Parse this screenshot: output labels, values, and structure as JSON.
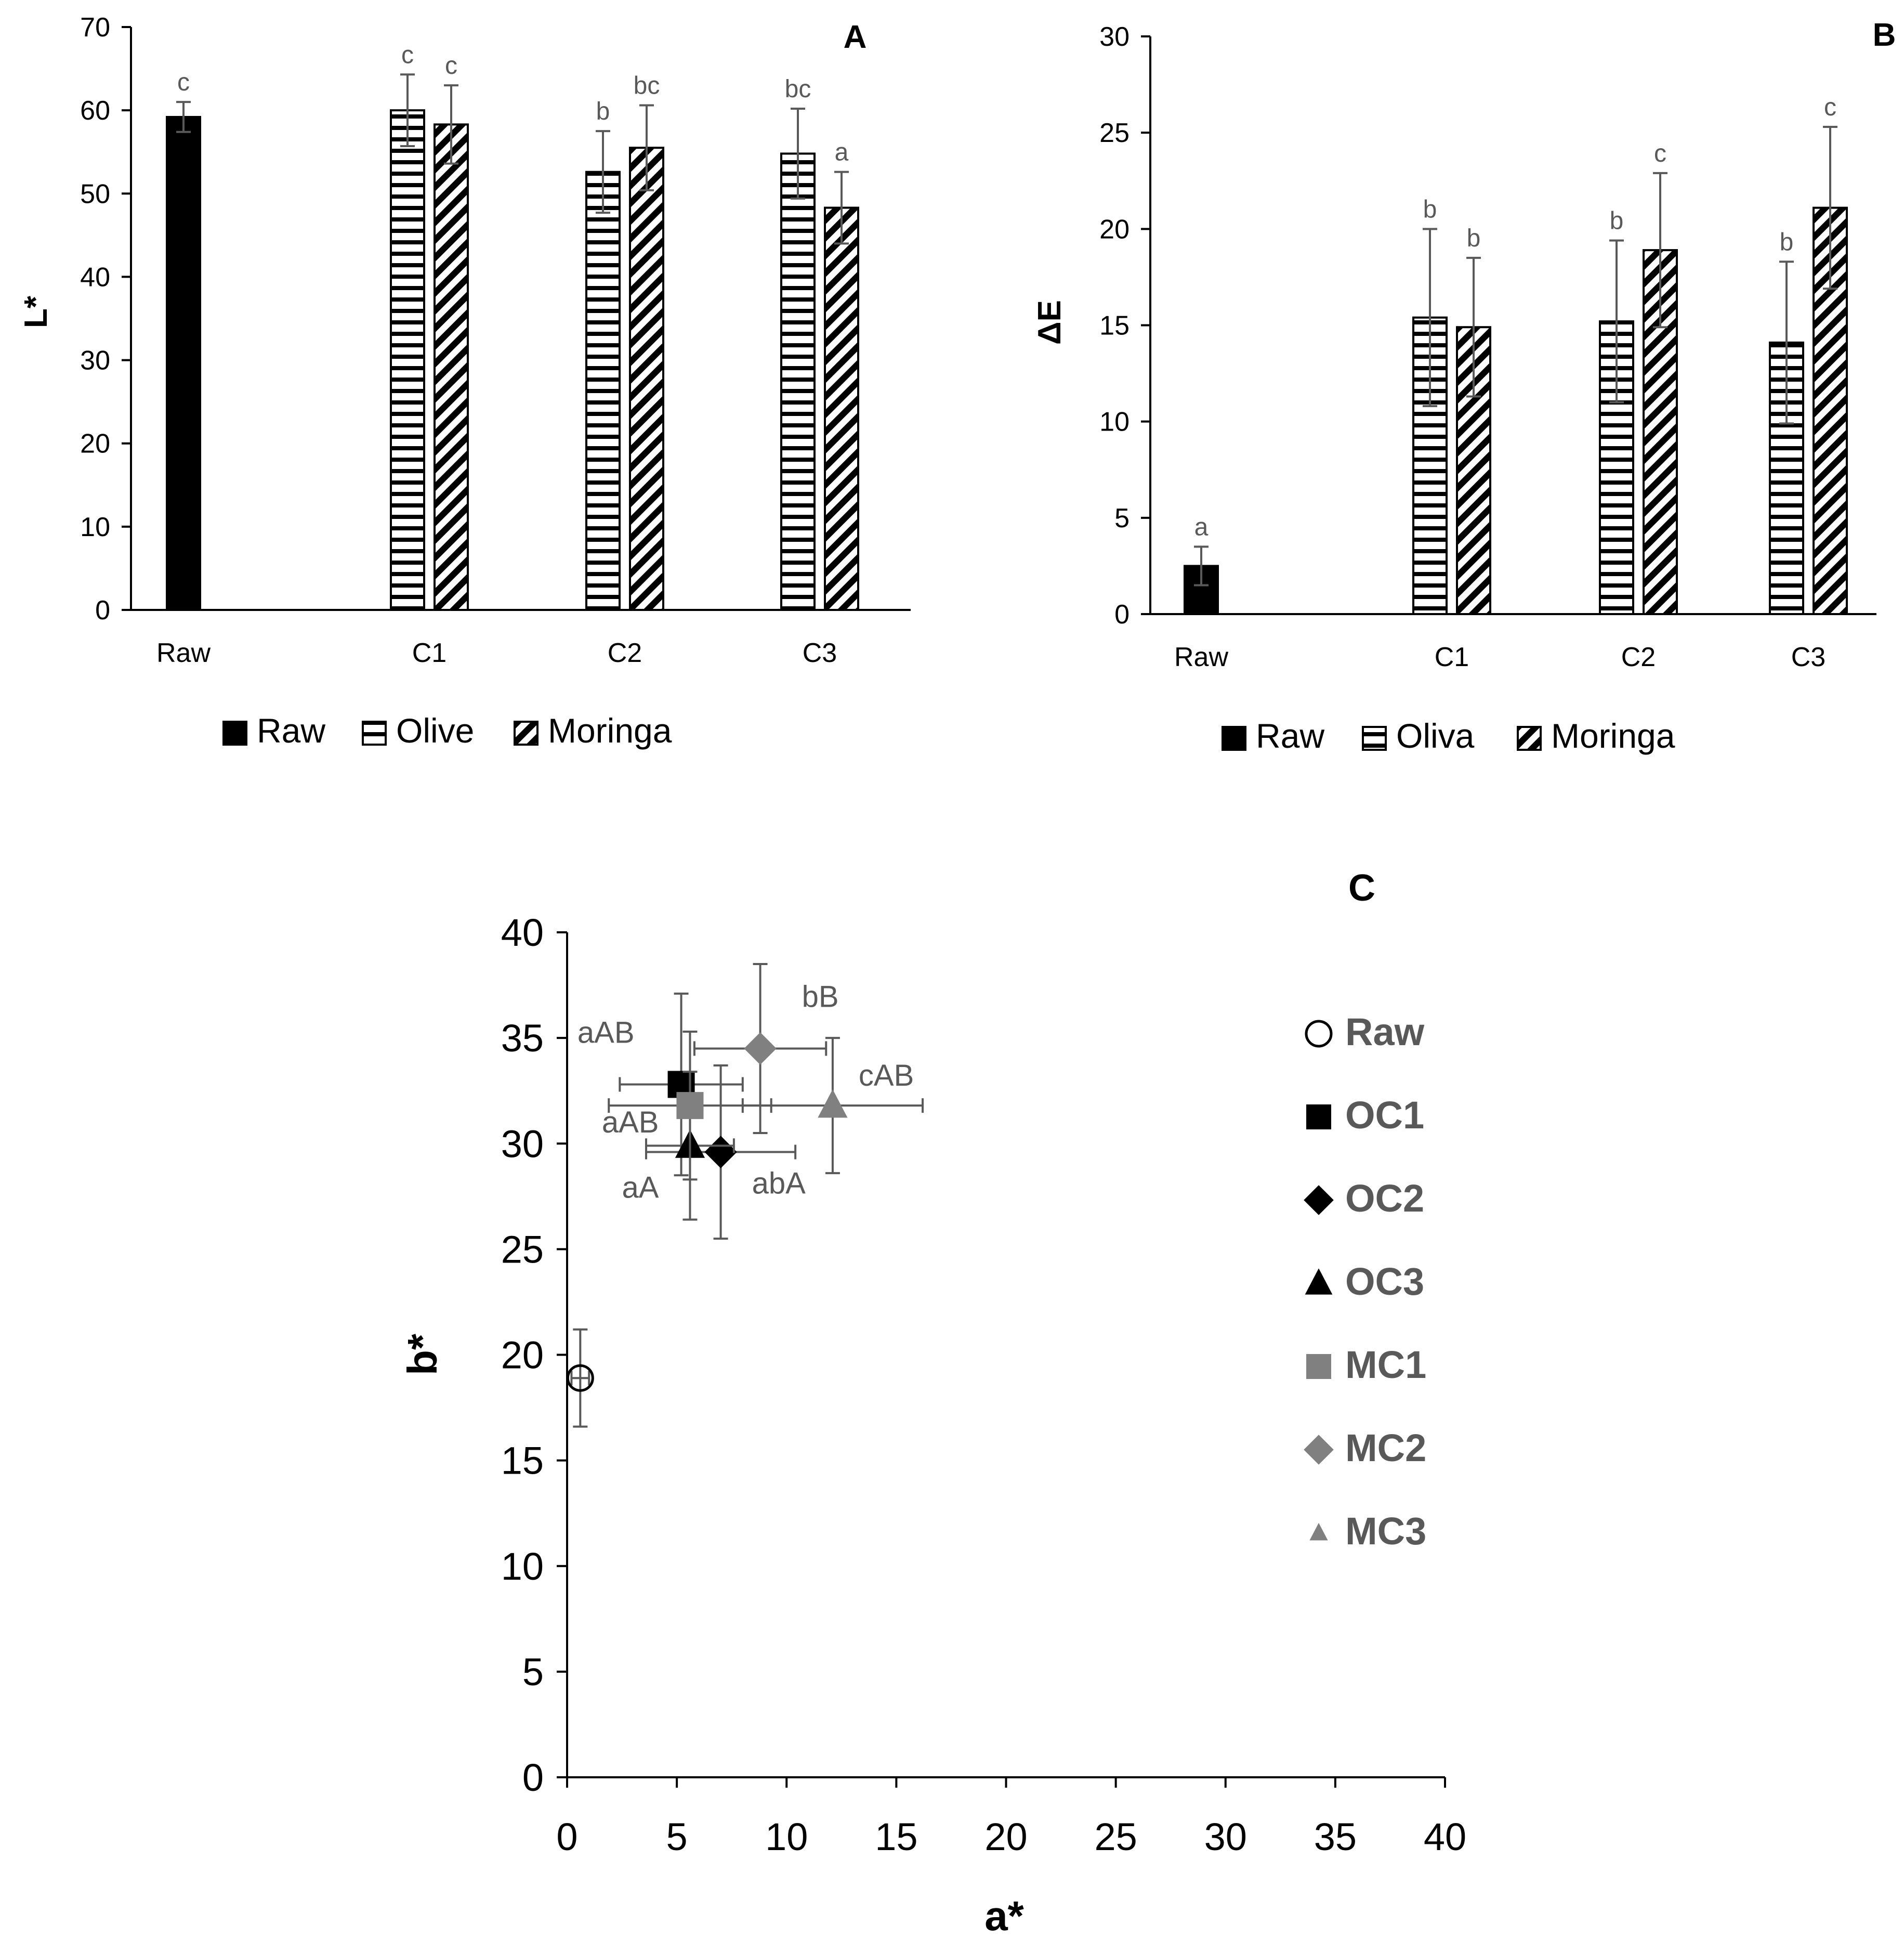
{
  "chart_data": [
    {
      "panel": "A",
      "type": "bar",
      "panel_label": "A",
      "ylabel": "L*",
      "xlabel": "",
      "ylim": [
        0,
        70
      ],
      "yticks": [
        0,
        10,
        20,
        30,
        40,
        50,
        60,
        70
      ],
      "categories": [
        "Raw",
        "C1",
        "C2",
        "C3"
      ],
      "series": [
        {
          "name": "Raw",
          "pattern": "solid",
          "values": [
            59.2,
            null,
            null,
            null
          ],
          "errors": [
            1.8,
            null,
            null,
            null
          ],
          "letters": [
            "c",
            null,
            null,
            null
          ]
        },
        {
          "name": "Olive",
          "pattern": "horizontal",
          "values": [
            null,
            60.0,
            52.6,
            54.8
          ],
          "errors": [
            null,
            4.3,
            4.9,
            5.4
          ],
          "letters": [
            null,
            "c",
            "b",
            "bc"
          ]
        },
        {
          "name": "Moringa",
          "pattern": "diagonal",
          "values": [
            null,
            58.3,
            55.5,
            48.3
          ],
          "errors": [
            null,
            4.7,
            5.1,
            4.3
          ],
          "letters": [
            null,
            "c",
            "bc",
            "a"
          ]
        }
      ],
      "legend": [
        "Raw",
        "Olive",
        "Moringa"
      ],
      "legend_position": "bottom"
    },
    {
      "panel": "B",
      "type": "bar",
      "panel_label": "B",
      "ylabel": "ΔE",
      "xlabel": "",
      "ylim": [
        0,
        30
      ],
      "yticks": [
        0,
        5,
        10,
        15,
        20,
        25,
        30
      ],
      "categories": [
        "Raw",
        "C1",
        "C2",
        "C3"
      ],
      "series": [
        {
          "name": "Raw",
          "pattern": "solid",
          "values": [
            2.5,
            null,
            null,
            null
          ],
          "errors": [
            1.0,
            null,
            null,
            null
          ],
          "letters": [
            "a",
            null,
            null,
            null
          ]
        },
        {
          "name": "Oliva",
          "pattern": "horizontal",
          "values": [
            null,
            15.4,
            15.2,
            14.1
          ],
          "errors": [
            null,
            4.6,
            4.2,
            4.2
          ],
          "letters": [
            null,
            "b",
            "b",
            "b"
          ]
        },
        {
          "name": "Moringa",
          "pattern": "diagonal",
          "values": [
            null,
            14.9,
            18.9,
            21.1
          ],
          "errors": [
            null,
            3.6,
            4.0,
            4.2
          ],
          "letters": [
            null,
            "b",
            "c",
            "c"
          ]
        }
      ],
      "legend": [
        "Raw",
        "Oliva",
        "Moringa"
      ],
      "legend_position": "bottom"
    },
    {
      "panel": "C",
      "type": "scatter",
      "panel_label": "C",
      "xlabel": "a*",
      "ylabel": "b*",
      "xlim": [
        0,
        40
      ],
      "ylim": [
        0,
        40
      ],
      "xticks": [
        0,
        5,
        10,
        15,
        20,
        25,
        30,
        35,
        40
      ],
      "yticks": [
        0,
        5,
        10,
        15,
        20,
        25,
        30,
        35,
        40
      ],
      "legend_position": "right",
      "series": [
        {
          "name": "Raw",
          "marker": "circle-open",
          "color": "#000000",
          "x": 0.6,
          "y": 18.9,
          "xerr": 0.4,
          "yerr": 2.3,
          "label": ""
        },
        {
          "name": "OC1",
          "marker": "square",
          "color": "#000000",
          "x": 5.2,
          "y": 32.8,
          "xerr": 2.8,
          "yerr": 4.3,
          "label": "aAB"
        },
        {
          "name": "OC2",
          "marker": "diamond",
          "color": "#000000",
          "x": 7.0,
          "y": 29.6,
          "xerr": 3.4,
          "yerr": 4.1,
          "label": "abA"
        },
        {
          "name": "OC3",
          "marker": "triangle",
          "color": "#000000",
          "x": 5.6,
          "y": 29.9,
          "xerr": 2.0,
          "yerr": 3.5,
          "label": "aA"
        },
        {
          "name": "MC1",
          "marker": "square",
          "color": "#808080",
          "x": 5.6,
          "y": 31.8,
          "xerr": 3.7,
          "yerr": 3.5,
          "label": "aAB"
        },
        {
          "name": "MC2",
          "marker": "diamond",
          "color": "#808080",
          "x": 8.8,
          "y": 34.5,
          "xerr": 3.0,
          "yerr": 4.0,
          "label": "bB"
        },
        {
          "name": "MC3",
          "marker": "triangle",
          "color": "#808080",
          "x": 12.1,
          "y": 31.8,
          "xerr": 4.1,
          "yerr": 3.2,
          "label": "cAB"
        }
      ]
    }
  ],
  "colors": {
    "black": "#000000",
    "grey": "#808080",
    "axis": "#000000"
  }
}
